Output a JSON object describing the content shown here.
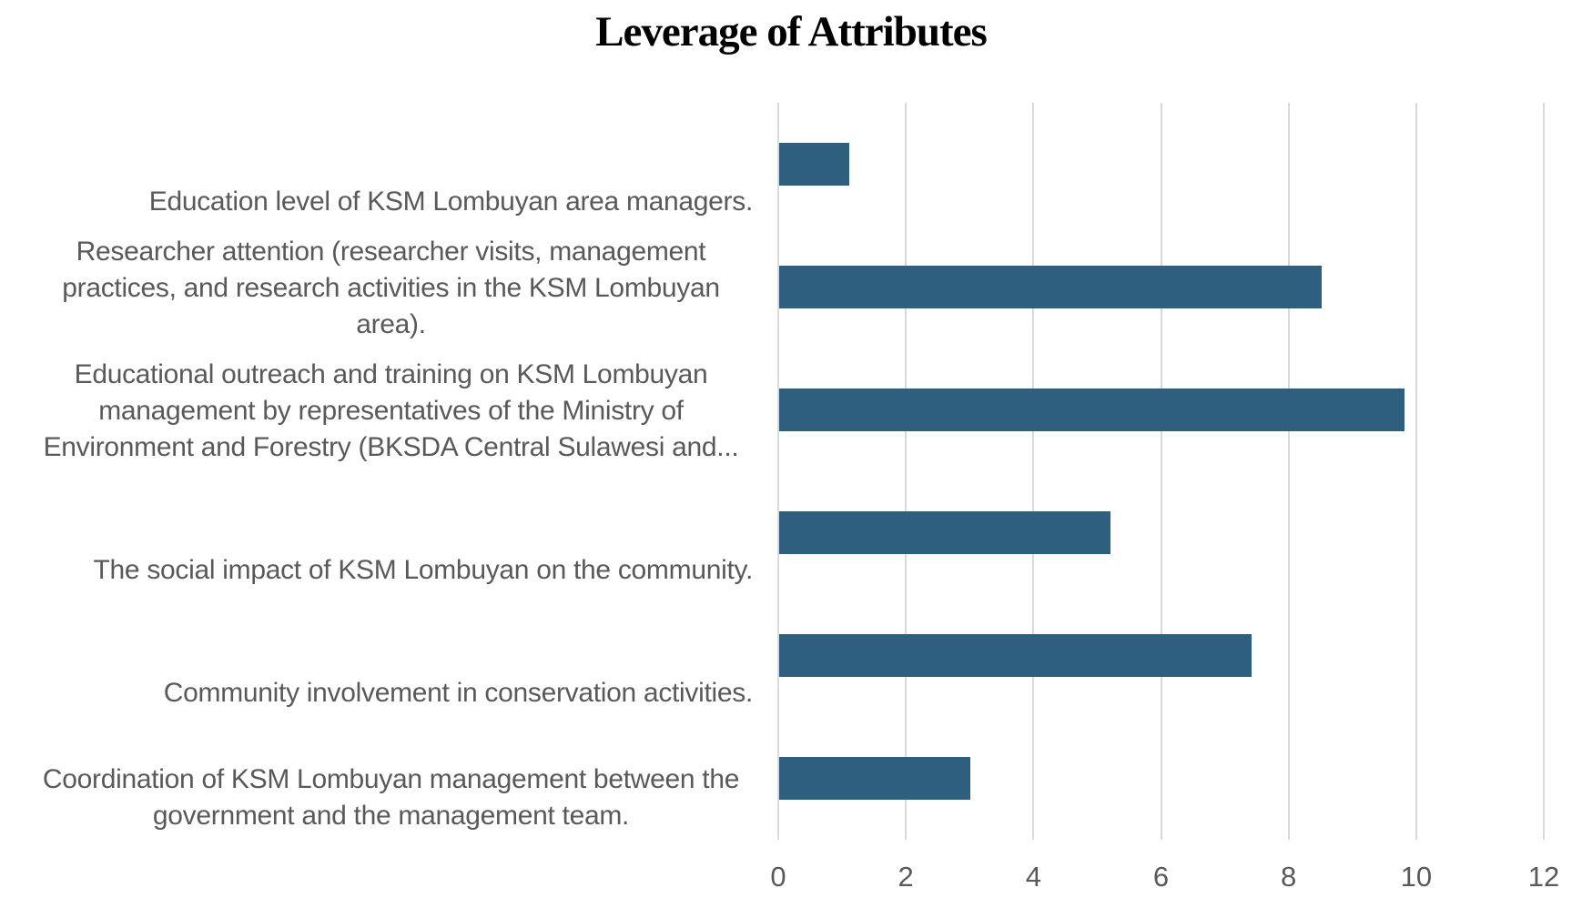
{
  "title": "Leverage of Attributes",
  "colors": {
    "bar": "#2E5F7E",
    "gridline": "#D9D9D9",
    "category_text": "#595959",
    "tick_text": "#595959",
    "title_text": "#000000",
    "background": "#FFFFFF"
  },
  "chart_data": {
    "type": "bar",
    "orientation": "horizontal",
    "title": "Leverage of Attributes",
    "categories": [
      "Education level of KSM Lombuyan area managers.",
      "Researcher attention (researcher visits, management practices, and research activities in the KSM Lombuyan area).",
      "Educational outreach and training on KSM Lombuyan management by representatives of the Ministry of Environment and Forestry (BKSDA Central Sulawesi and...",
      "The social impact of KSM Lombuyan on the community.",
      "Community involvement in conservation activities.",
      "Coordination of KSM Lombuyan management between the government and the management team."
    ],
    "values": [
      1.1,
      8.5,
      9.8,
      5.2,
      7.4,
      3.0
    ],
    "xlabel": "",
    "ylabel": "",
    "xlim": [
      0,
      12
    ],
    "xticks": [
      0,
      2,
      4,
      6,
      8,
      10,
      12
    ],
    "grid": true,
    "legend": false
  }
}
